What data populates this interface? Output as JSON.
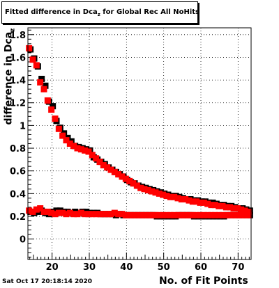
{
  "chart_data": {
    "type": "scatter",
    "title_main": "Fitted difference in Dca",
    "title_sub": "z",
    "title_rest": " for Global Rec All NoHits",
    "xlabel": "No. of Fit Points",
    "ylabel": "difference in Dca",
    "ylabel_sub": "z",
    "xlim": [
      13.5,
      73.5
    ],
    "ylim": [
      -0.18,
      1.86
    ],
    "xticks": [
      20,
      30,
      40,
      50,
      60,
      70
    ],
    "yticks": [
      0,
      0.2,
      0.4,
      0.6,
      0.8,
      1,
      1.2,
      1.4,
      1.6,
      1.8
    ],
    "ytick_labels": [
      "0",
      "0.2",
      "0.4",
      "0.6",
      "0.8",
      "1",
      "1.2",
      "1.4",
      "1.6",
      "1.8"
    ],
    "grid": true,
    "colors": {
      "series_a": "#000000",
      "series_b": "#ff0000"
    },
    "x": [
      14,
      15,
      16,
      17,
      18,
      19,
      20,
      21,
      22,
      23,
      24,
      25,
      26,
      27,
      28,
      29,
      30,
      31,
      32,
      33,
      34,
      35,
      36,
      37,
      38,
      39,
      40,
      41,
      42,
      43,
      44,
      45,
      46,
      47,
      48,
      49,
      50,
      51,
      52,
      53,
      54,
      55,
      56,
      57,
      58,
      59,
      60,
      61,
      62,
      63,
      64,
      65,
      66,
      67,
      68,
      69,
      70,
      71,
      72,
      73
    ],
    "series": [
      {
        "values_upper": [
          1.67,
          1.59,
          1.52,
          1.41,
          1.35,
          1.21,
          1.17,
          1.04,
          0.98,
          0.93,
          0.89,
          0.86,
          0.82,
          0.81,
          0.8,
          0.79,
          0.78,
          0.72,
          0.7,
          0.68,
          0.66,
          0.63,
          0.61,
          0.59,
          0.57,
          0.55,
          0.52,
          0.5,
          0.49,
          0.47,
          0.46,
          0.45,
          0.44,
          0.43,
          0.42,
          0.41,
          0.4,
          0.39,
          0.38,
          0.38,
          0.37,
          0.36,
          0.35,
          0.35,
          0.34,
          0.34,
          0.33,
          0.33,
          0.32,
          0.32,
          0.31,
          0.3,
          0.3,
          0.29,
          0.29,
          0.28,
          0.27,
          0.27,
          0.26,
          0.25
        ],
        "values_lower": [
          0.24,
          0.23,
          0.24,
          0.25,
          0.23,
          0.22,
          0.24,
          0.25,
          0.25,
          0.24,
          0.24,
          0.23,
          0.24,
          0.23,
          0.24,
          0.24,
          0.23,
          0.23,
          0.23,
          0.22,
          0.22,
          0.22,
          0.22,
          0.21,
          0.22,
          0.21,
          0.21,
          0.21,
          0.21,
          0.21,
          0.21,
          0.21,
          0.21,
          0.21,
          0.2,
          0.2,
          0.2,
          0.2,
          0.2,
          0.2,
          0.21,
          0.21,
          0.21,
          0.21,
          0.2,
          0.2,
          0.2,
          0.2,
          0.2,
          0.2,
          0.2,
          0.2,
          0.2,
          0.21,
          0.21,
          0.21,
          0.21,
          0.21,
          0.21,
          0.21
        ]
      },
      {
        "values_upper": [
          1.68,
          1.58,
          1.53,
          1.38,
          1.32,
          1.22,
          1.14,
          1.06,
          0.97,
          0.91,
          0.87,
          0.84,
          0.82,
          0.8,
          0.79,
          0.78,
          0.77,
          0.74,
          0.71,
          0.68,
          0.65,
          0.63,
          0.61,
          0.59,
          0.57,
          0.55,
          0.53,
          0.51,
          0.49,
          0.47,
          0.45,
          0.44,
          0.43,
          0.42,
          0.41,
          0.4,
          0.39,
          0.38,
          0.37,
          0.37,
          0.36,
          0.35,
          0.35,
          0.34,
          0.33,
          0.33,
          0.32,
          0.32,
          0.31,
          0.3,
          0.3,
          0.29,
          0.29,
          0.28,
          0.28,
          0.27,
          0.27,
          0.26,
          0.25,
          0.24
        ],
        "values_lower": [
          0.25,
          0.24,
          0.26,
          0.27,
          0.24,
          0.24,
          0.23,
          0.22,
          0.23,
          0.23,
          0.22,
          0.23,
          0.22,
          0.22,
          0.23,
          0.22,
          0.22,
          0.22,
          0.22,
          0.22,
          0.22,
          0.22,
          0.22,
          0.23,
          0.22,
          0.22,
          0.21,
          0.21,
          0.21,
          0.21,
          0.21,
          0.21,
          0.21,
          0.21,
          0.21,
          0.21,
          0.21,
          0.21,
          0.21,
          0.21,
          0.21,
          0.21,
          0.21,
          0.21,
          0.21,
          0.21,
          0.21,
          0.21,
          0.21,
          0.21,
          0.21,
          0.21,
          0.21,
          0.21,
          0.21,
          0.21,
          0.21,
          0.21,
          0.21,
          0.21
        ]
      }
    ]
  },
  "footer": {
    "timestamp": "Sat Oct 17 20:18:14 2020"
  }
}
